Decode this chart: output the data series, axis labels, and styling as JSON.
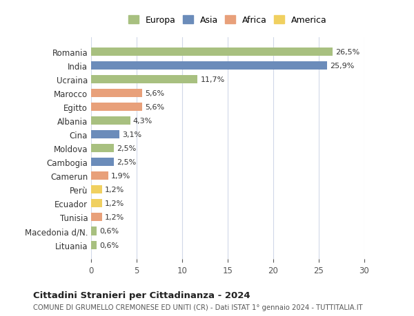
{
  "countries": [
    "Romania",
    "India",
    "Ucraina",
    "Marocco",
    "Egitto",
    "Albania",
    "Cina",
    "Moldova",
    "Cambogia",
    "Camerun",
    "Perù",
    "Ecuador",
    "Tunisia",
    "Macedonia d/N.",
    "Lituania"
  ],
  "values": [
    26.5,
    25.9,
    11.7,
    5.6,
    5.6,
    4.3,
    3.1,
    2.5,
    2.5,
    1.9,
    1.2,
    1.2,
    1.2,
    0.6,
    0.6
  ],
  "continents": [
    "Europa",
    "Asia",
    "Europa",
    "Africa",
    "Africa",
    "Europa",
    "Asia",
    "Europa",
    "Asia",
    "Africa",
    "America",
    "America",
    "Africa",
    "Europa",
    "Europa"
  ],
  "colors": {
    "Europa": "#a8c080",
    "Asia": "#6b8cba",
    "Africa": "#e8a07a",
    "America": "#f0d060"
  },
  "legend_order": [
    "Europa",
    "Asia",
    "Africa",
    "America"
  ],
  "title": "Cittadini Stranieri per Cittadinanza - 2024",
  "subtitle": "COMUNE DI GRUMELLO CREMONESE ED UNITI (CR) - Dati ISTAT 1° gennaio 2024 - TUTTITALIA.IT",
  "xlim": [
    0,
    30
  ],
  "xticks": [
    0,
    5,
    10,
    15,
    20,
    25,
    30
  ],
  "background_color": "#ffffff",
  "grid_color": "#d0d8e8",
  "bar_height": 0.6
}
